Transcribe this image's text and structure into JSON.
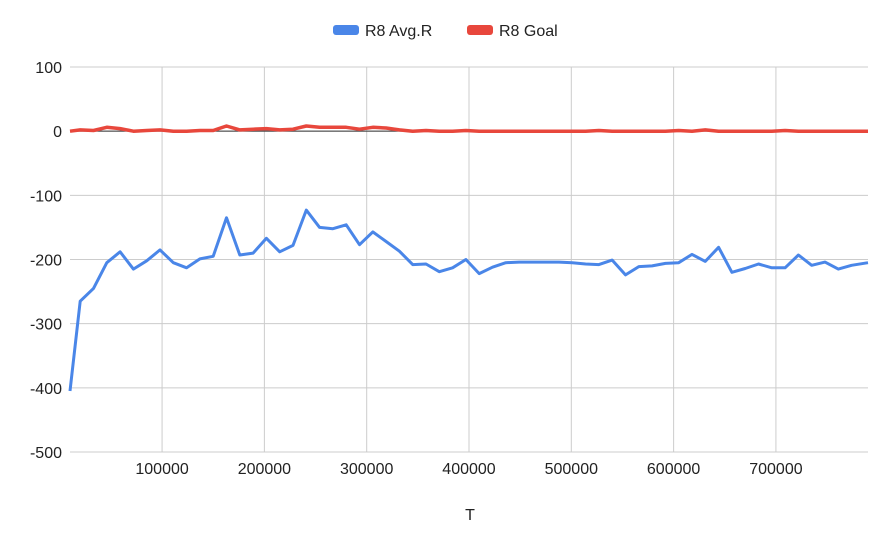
{
  "chart_data": {
    "type": "line",
    "title": "",
    "xlabel": "T",
    "ylabel": "",
    "xlim": [
      10000,
      790000
    ],
    "ylim": [
      -500,
      100
    ],
    "xticks": [
      100000,
      200000,
      300000,
      400000,
      500000,
      600000,
      700000
    ],
    "yticks": [
      100,
      0,
      -100,
      -200,
      -300,
      -400,
      -500
    ],
    "grid": true,
    "legend": "top-center",
    "series": [
      {
        "name": "R8 Avg.R",
        "color": "#4a86e8",
        "x": [
          10000,
          20000,
          33000,
          46000,
          59000,
          72000,
          85000,
          98000,
          111000,
          124000,
          137000,
          150000,
          163000,
          176000,
          189000,
          202000,
          215000,
          228000,
          241000,
          254000,
          267000,
          280000,
          293000,
          306000,
          319000,
          332000,
          345000,
          358000,
          371000,
          384000,
          397000,
          410000,
          423000,
          436000,
          449000,
          462000,
          475000,
          488000,
          501000,
          514000,
          527000,
          540000,
          553000,
          566000,
          579000,
          592000,
          605000,
          618000,
          631000,
          644000,
          657000,
          670000,
          683000,
          696000,
          709000,
          722000,
          735000,
          748000,
          761000,
          774000,
          790000
        ],
        "y": [
          -405,
          -265,
          -245,
          -205,
          -188,
          -215,
          -202,
          -185,
          -205,
          -213,
          -199,
          -195,
          -135,
          -193,
          -190,
          -167,
          -188,
          -178,
          -123,
          -150,
          -152,
          -146,
          -177,
          -157,
          -172,
          -187,
          -208,
          -207,
          -219,
          -213,
          -200,
          -222,
          -212,
          -205,
          -204,
          -204,
          -204,
          -204,
          -205,
          -207,
          -208,
          -201,
          -224,
          -211,
          -210,
          -206,
          -205,
          -192,
          -203,
          -181,
          -220,
          -214,
          -207,
          -213,
          -213,
          -193,
          -209,
          -204,
          -215,
          -209,
          -205
        ]
      },
      {
        "name": "R8 Goal",
        "color": "#e8473c",
        "x": [
          10000,
          20000,
          33000,
          46000,
          59000,
          72000,
          85000,
          98000,
          111000,
          124000,
          137000,
          150000,
          163000,
          176000,
          189000,
          202000,
          215000,
          228000,
          241000,
          254000,
          267000,
          280000,
          293000,
          306000,
          319000,
          332000,
          345000,
          358000,
          371000,
          384000,
          397000,
          410000,
          423000,
          436000,
          449000,
          462000,
          475000,
          488000,
          501000,
          514000,
          527000,
          540000,
          553000,
          566000,
          579000,
          592000,
          605000,
          618000,
          631000,
          644000,
          657000,
          670000,
          683000,
          696000,
          709000,
          722000,
          735000,
          748000,
          761000,
          774000,
          790000
        ],
        "y": [
          0,
          2,
          1,
          6,
          4,
          0,
          1,
          2,
          0,
          0,
          1,
          1,
          8,
          2,
          3,
          4,
          2,
          3,
          8,
          6,
          6,
          6,
          3,
          6,
          5,
          2,
          0,
          1,
          0,
          0,
          1,
          0,
          0,
          0,
          0,
          0,
          0,
          0,
          0,
          0,
          1,
          0,
          0,
          0,
          0,
          0,
          1,
          0,
          2,
          0,
          0,
          0,
          0,
          0,
          1,
          0,
          0,
          0,
          0,
          0,
          0
        ]
      }
    ]
  }
}
